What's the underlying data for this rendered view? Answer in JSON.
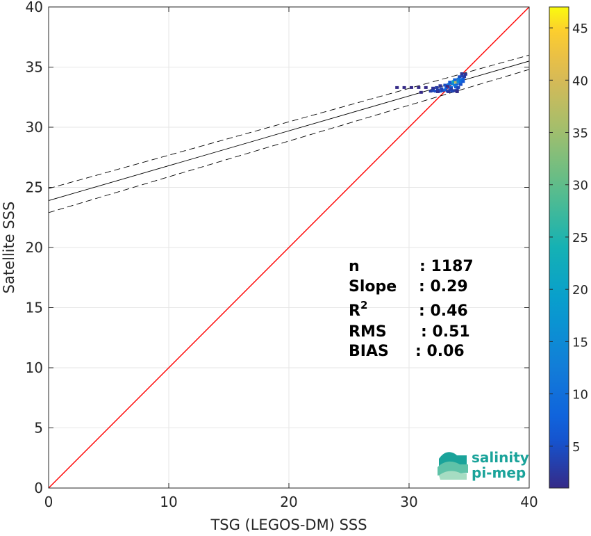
{
  "chart_data": {
    "type": "scatter",
    "subtype": "density-scatter",
    "xlabel": "TSG (LEGOS-DM) SSS",
    "ylabel": "Satellite SSS",
    "xlim": [
      0,
      40
    ],
    "ylim": [
      0,
      40
    ],
    "x_ticks": [
      0,
      10,
      20,
      30,
      40
    ],
    "y_ticks": [
      0,
      5,
      10,
      15,
      20,
      25,
      30,
      35,
      40
    ],
    "grid": true,
    "identity_line": {
      "from": [
        0,
        0
      ],
      "to": [
        40,
        40
      ],
      "color": "#ff0000"
    },
    "regression": {
      "slope": 0.29,
      "intercept": 23.9,
      "upper": {
        "y_at_0": 24.9,
        "y_at_40": 36.0
      },
      "lower": {
        "y_at_0": 22.9,
        "y_at_40": 34.8
      }
    },
    "stats": [
      {
        "label": "n",
        "value": ": 1187"
      },
      {
        "label": "Slope",
        "value": ": 0.29"
      },
      {
        "label": "R",
        "sup": "2",
        "value": ": 0.46"
      },
      {
        "label": "RMS",
        "value": ": 0.51"
      },
      {
        "label": "BIAS",
        "value": ": 0.06"
      }
    ],
    "colorbar": {
      "min": 1,
      "max": 47,
      "ticks": [
        5,
        10,
        15,
        20,
        25,
        30,
        35,
        40,
        45
      ],
      "colormap": "parula"
    },
    "points": [
      {
        "x": 31.8,
        "y": 33.0,
        "c": 3
      },
      {
        "x": 32.0,
        "y": 33.05,
        "c": 4
      },
      {
        "x": 32.2,
        "y": 33.0,
        "c": 5
      },
      {
        "x": 32.4,
        "y": 33.1,
        "c": 3
      },
      {
        "x": 32.6,
        "y": 33.0,
        "c": 6
      },
      {
        "x": 32.8,
        "y": 33.05,
        "c": 4
      },
      {
        "x": 33.0,
        "y": 33.1,
        "c": 8
      },
      {
        "x": 33.2,
        "y": 33.0,
        "c": 5
      },
      {
        "x": 33.4,
        "y": 33.1,
        "c": 6
      },
      {
        "x": 33.6,
        "y": 33.0,
        "c": 4
      },
      {
        "x": 33.8,
        "y": 33.05,
        "c": 3
      },
      {
        "x": 34.0,
        "y": 33.1,
        "c": 3
      },
      {
        "x": 32.0,
        "y": 33.25,
        "c": 2
      },
      {
        "x": 32.3,
        "y": 33.3,
        "c": 3
      },
      {
        "x": 32.7,
        "y": 33.2,
        "c": 4
      },
      {
        "x": 33.1,
        "y": 33.3,
        "c": 7
      },
      {
        "x": 33.5,
        "y": 33.3,
        "c": 9
      },
      {
        "x": 33.9,
        "y": 33.35,
        "c": 6
      },
      {
        "x": 34.1,
        "y": 33.3,
        "c": 4
      },
      {
        "x": 32.6,
        "y": 33.45,
        "c": 2
      },
      {
        "x": 33.0,
        "y": 33.5,
        "c": 5
      },
      {
        "x": 33.3,
        "y": 33.55,
        "c": 10
      },
      {
        "x": 33.6,
        "y": 33.6,
        "c": 14
      },
      {
        "x": 33.8,
        "y": 33.5,
        "c": 12
      },
      {
        "x": 34.0,
        "y": 33.6,
        "c": 8
      },
      {
        "x": 34.3,
        "y": 33.55,
        "c": 5
      },
      {
        "x": 33.4,
        "y": 33.75,
        "c": 6
      },
      {
        "x": 33.7,
        "y": 33.8,
        "c": 22
      },
      {
        "x": 33.9,
        "y": 33.75,
        "c": 38
      },
      {
        "x": 34.1,
        "y": 33.8,
        "c": 15
      },
      {
        "x": 34.3,
        "y": 33.75,
        "c": 9
      },
      {
        "x": 34.5,
        "y": 33.8,
        "c": 6
      },
      {
        "x": 33.8,
        "y": 33.95,
        "c": 8
      },
      {
        "x": 34.1,
        "y": 34.0,
        "c": 12
      },
      {
        "x": 34.3,
        "y": 33.95,
        "c": 10
      },
      {
        "x": 34.5,
        "y": 34.0,
        "c": 7
      },
      {
        "x": 34.2,
        "y": 34.2,
        "c": 5
      },
      {
        "x": 34.4,
        "y": 34.25,
        "c": 4
      },
      {
        "x": 34.6,
        "y": 34.2,
        "c": 3
      },
      {
        "x": 34.4,
        "y": 34.45,
        "c": 2
      },
      {
        "x": 34.7,
        "y": 34.4,
        "c": 2
      },
      {
        "x": 33.2,
        "y": 33.4,
        "c": 1
      },
      {
        "x": 29.0,
        "y": 33.3,
        "c": 1
      },
      {
        "x": 29.6,
        "y": 33.3,
        "c": 1
      },
      {
        "x": 30.2,
        "y": 33.3,
        "c": 1
      },
      {
        "x": 30.8,
        "y": 33.3,
        "c": 1
      },
      {
        "x": 31.4,
        "y": 33.3,
        "c": 1
      },
      {
        "x": 31.0,
        "y": 32.9,
        "c": 1
      },
      {
        "x": 32.4,
        "y": 32.95,
        "c": 2
      },
      {
        "x": 33.3,
        "y": 32.95,
        "c": 2
      },
      {
        "x": 34.0,
        "y": 32.95,
        "c": 1
      },
      {
        "x": 33.5,
        "y": 33.2,
        "c": 3
      }
    ]
  },
  "logo": {
    "line1": "salinity",
    "line2": "pi-mep",
    "colors": [
      "#1aa39a",
      "#5fc2a8",
      "#a6dcc2"
    ]
  }
}
